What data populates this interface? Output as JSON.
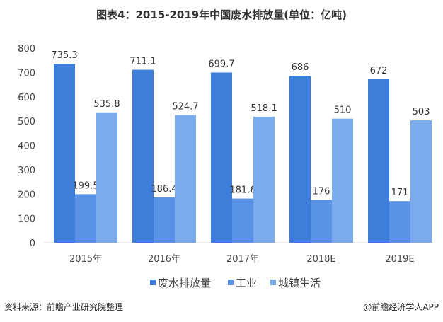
{
  "chart_data": {
    "type": "bar",
    "title": "图表4：2015-2019年中国废水排放量(单位：亿吨)",
    "categories": [
      "2015年",
      "2016年",
      "2017年",
      "2018E",
      "2019E"
    ],
    "series": [
      {
        "name": "废水排放量",
        "values": [
          735.3,
          711.1,
          699.7,
          686,
          672
        ],
        "color": "#3d7edb"
      },
      {
        "name": "工业",
        "values": [
          199.5,
          186.4,
          181.6,
          176,
          171
        ],
        "color": "#5a93e5"
      },
      {
        "name": "城镇生活",
        "values": [
          535.8,
          524.7,
          518.1,
          510,
          503
        ],
        "color": "#7aabed"
      }
    ],
    "ylim": [
      0,
      800
    ],
    "yticks": [
      0,
      100,
      200,
      300,
      400,
      500,
      600,
      700,
      800
    ],
    "grid": false,
    "legend": "bottom"
  },
  "footer": {
    "source": "资料来源：前瞻产业研究院整理",
    "credit": "@前瞻经济学人APP"
  }
}
